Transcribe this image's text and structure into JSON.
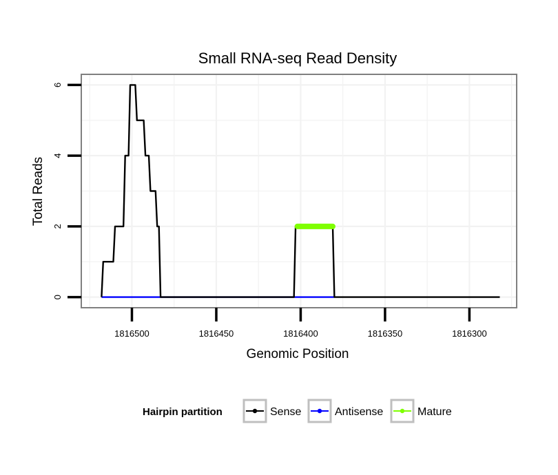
{
  "chart_data": {
    "type": "line",
    "title": "Small RNA-seq Read Density",
    "xlabel": "Genomic Position",
    "ylabel": "Total Reads",
    "x_reversed": true,
    "xlim": [
      1816530,
      1816272
    ],
    "ylim": [
      -0.3,
      6.3
    ],
    "x_ticks": [
      1816500,
      1816450,
      1816400,
      1816350,
      1816300
    ],
    "x_tick_labels": [
      "1816500",
      "1816450",
      "1816400",
      "1816350",
      "1816300"
    ],
    "y_ticks": [
      0,
      2,
      4,
      6
    ],
    "y_tick_labels": [
      "0",
      "2",
      "4",
      "6"
    ],
    "grid": true,
    "legend": {
      "title": "Hairpin partition",
      "position": "bottom",
      "entries": [
        {
          "label": "Sense",
          "color": "#000000"
        },
        {
          "label": "Antisense",
          "color": "#0000ff"
        },
        {
          "label": "Mature",
          "color": "#7fff00"
        }
      ]
    },
    "series": [
      {
        "name": "Sense",
        "color": "#000000",
        "x": [
          1816518,
          1816517,
          1816511,
          1816510,
          1816505,
          1816504,
          1816502,
          1816501,
          1816498,
          1816497,
          1816493,
          1816492,
          1816490,
          1816489,
          1816486,
          1816485,
          1816484,
          1816483,
          1816482,
          1816481,
          1816404,
          1816403,
          1816381,
          1816380,
          1816282
        ],
        "y": [
          0,
          1,
          1,
          2,
          2,
          4,
          4,
          6,
          6,
          5,
          5,
          4,
          4,
          3,
          3,
          2,
          2,
          0,
          0,
          0,
          0,
          2,
          2,
          0,
          0
        ]
      },
      {
        "name": "Antisense",
        "color": "#0000ff",
        "x": [
          1816518,
          1816481,
          1816403,
          1816380
        ],
        "y": [
          0,
          0,
          0,
          0
        ]
      },
      {
        "name": "Mature",
        "color": "#7fff00",
        "x": [
          1816402,
          1816381
        ],
        "y": [
          2,
          2
        ]
      }
    ]
  }
}
